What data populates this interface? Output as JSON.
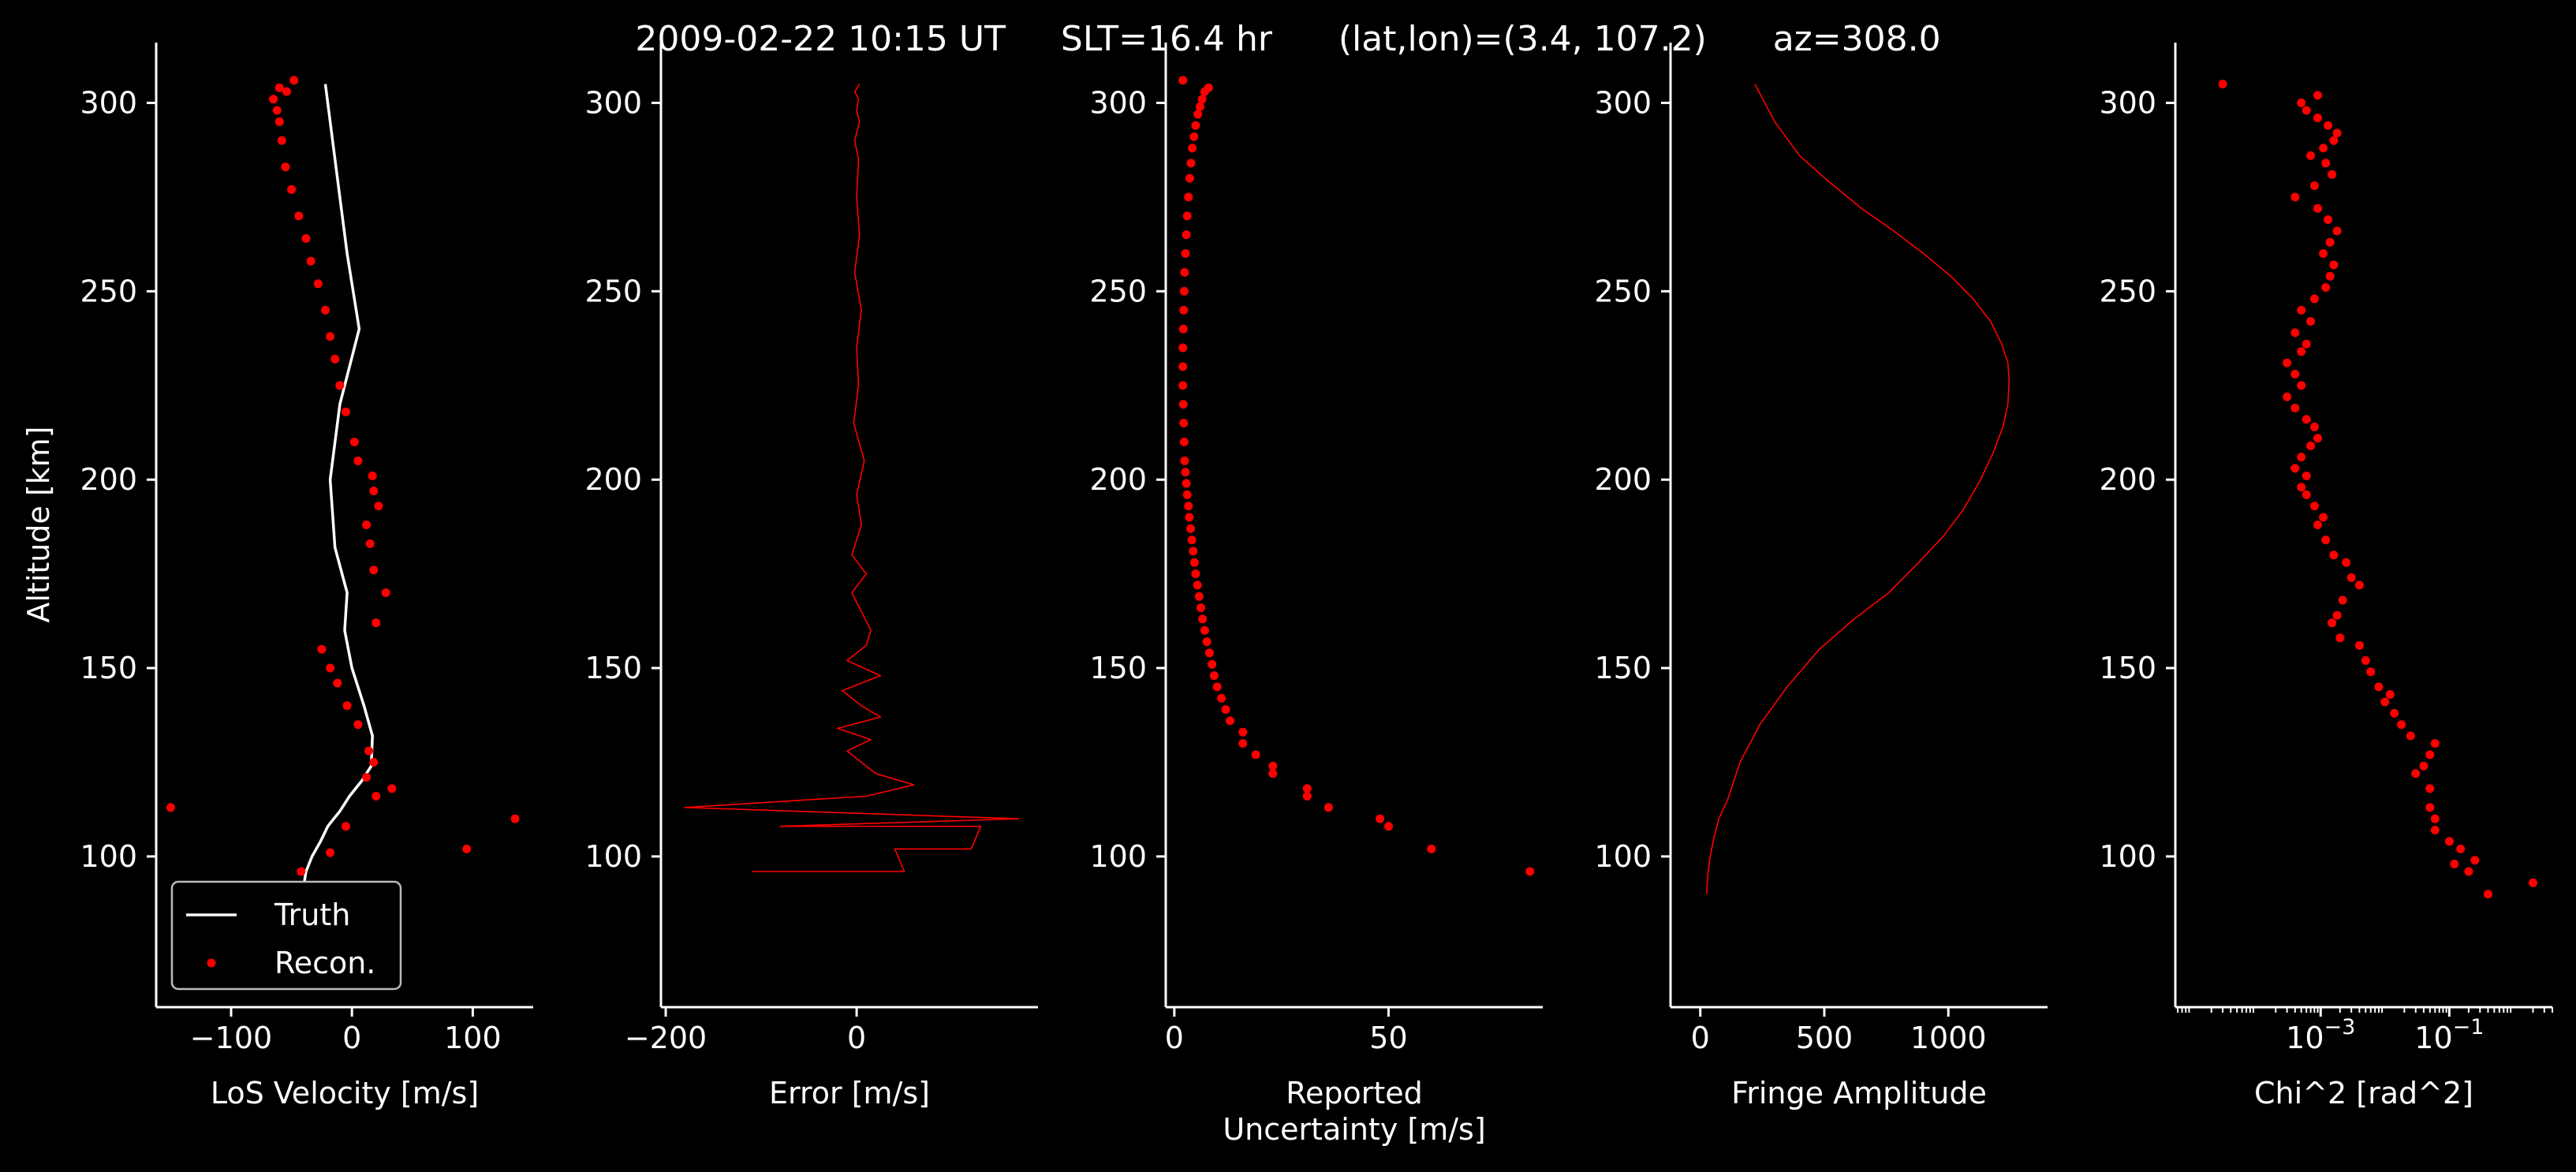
{
  "title": "2009-02-22 10:15 UT     SLT=16.4 hr      (lat,lon)=(3.4, 107.2)      az=308.0",
  "colors": {
    "background": "#000000",
    "axes": "#ffffff",
    "data": "#ff0000",
    "truth": "#ffffff"
  },
  "ylabel": "Altitude [km]",
  "chart_data": [
    {
      "type": "line",
      "xlabel": "LoS Velocity [m/s]",
      "ylabel": "Altitude [km]",
      "xlim": [
        -162,
        150
      ],
      "ylim": [
        60,
        316
      ],
      "xticks": [
        -100,
        0,
        100
      ],
      "xtick_labels": [
        "−100",
        "0",
        "100"
      ],
      "yticks": [
        100,
        150,
        200,
        250,
        300
      ],
      "ytick_labels": [
        "100",
        "150",
        "200",
        "250",
        "300"
      ],
      "legend": {
        "position": "lower-left",
        "entries": [
          "Truth",
          "Recon."
        ]
      },
      "series": [
        {
          "name": "Truth",
          "kind": "line",
          "x": [
            -40,
            -38,
            -33,
            -26,
            -20,
            -15,
            -10,
            -2,
            8,
            16,
            17,
            10,
            0,
            -6,
            -4,
            -14,
            -18,
            -10,
            6,
            -4,
            -12,
            -18,
            -22
          ],
          "y": [
            92,
            96,
            100,
            104,
            108,
            110,
            112,
            116,
            120,
            124,
            132,
            140,
            150,
            160,
            170,
            182,
            200,
            220,
            240,
            260,
            280,
            295,
            305
          ]
        },
        {
          "name": "Recon.",
          "kind": "scatter",
          "x": [
            -150,
            -42,
            -18,
            95,
            135,
            -5,
            33,
            20,
            12,
            18,
            14,
            5,
            -4,
            -12,
            -18,
            -25,
            20,
            28,
            18,
            15,
            12,
            22,
            18,
            17,
            5,
            2,
            -5,
            -10,
            -14,
            -18,
            -22,
            -28,
            -34,
            -38,
            -44,
            -50,
            -55,
            -58,
            -60,
            -62,
            -65,
            -54,
            -60,
            -48
          ],
          "y": [
            113,
            96,
            101,
            102,
            110,
            108,
            118,
            116,
            121,
            125,
            128,
            135,
            140,
            146,
            150,
            155,
            162,
            170,
            176,
            183,
            188,
            193,
            197,
            201,
            205,
            210,
            218,
            225,
            232,
            238,
            245,
            252,
            258,
            264,
            270,
            277,
            283,
            290,
            295,
            298,
            301,
            303,
            304,
            306
          ]
        }
      ]
    },
    {
      "type": "line",
      "xlabel": "Error [m/s]",
      "xlim": [
        -205,
        190
      ],
      "ylim": [
        60,
        316
      ],
      "xticks": [
        -200,
        0
      ],
      "xtick_labels": [
        "−200",
        "0"
      ],
      "yticks": [
        100,
        150,
        200,
        250,
        300
      ],
      "ytick_labels": [
        "100",
        "150",
        "200",
        "250",
        "300"
      ],
      "series": [
        {
          "kind": "line",
          "x": [
            -110,
            50,
            40,
            120,
            130,
            -80,
            170,
            -180,
            10,
            60,
            20,
            5,
            -10,
            15,
            -20,
            25,
            5,
            -15,
            25,
            -10,
            10,
            15,
            5,
            -5,
            10,
            -5,
            5,
            0,
            8,
            -3,
            2,
            0,
            5,
            -2,
            3,
            0,
            2,
            -2,
            3,
            0,
            2,
            -2,
            3
          ],
          "y": [
            96,
            96,
            102,
            102,
            108,
            108,
            110,
            113,
            116,
            119,
            122,
            125,
            128,
            131,
            134,
            137,
            140,
            144,
            148,
            152,
            156,
            160,
            165,
            170,
            175,
            180,
            188,
            196,
            205,
            215,
            225,
            235,
            245,
            255,
            265,
            275,
            285,
            290,
            295,
            298,
            301,
            303,
            305
          ]
        }
      ]
    },
    {
      "type": "scatter",
      "xlabel": "Reported\nUncertainty [m/s]",
      "xlim": [
        -2,
        86
      ],
      "ylim": [
        60,
        316
      ],
      "xticks": [
        0,
        50
      ],
      "xtick_labels": [
        "0",
        "50"
      ],
      "yticks": [
        100,
        150,
        200,
        250,
        300
      ],
      "ytick_labels": [
        "100",
        "150",
        "200",
        "250",
        "300"
      ],
      "series": [
        {
          "kind": "scatter",
          "x": [
            83,
            60,
            50,
            48,
            36,
            31,
            31,
            23,
            23,
            19,
            16,
            16,
            13,
            12,
            11,
            10,
            9.3,
            8.8,
            8.2,
            7.6,
            7.1,
            6.6,
            6.2,
            5.8,
            5.4,
            5.0,
            4.7,
            4.4,
            4.1,
            3.8,
            3.5,
            3.3,
            3.0,
            2.8,
            2.6,
            2.4,
            2.3,
            2.2,
            2.1,
            2.0,
            2.0,
            2.0,
            2.1,
            2.2,
            2.3,
            2.4,
            2.6,
            2.8,
            3.0,
            3.3,
            3.6,
            3.9,
            4.2,
            4.6,
            5.0,
            5.5,
            6.0,
            6.5,
            7.1,
            8.0,
            2.0
          ],
          "y": [
            96,
            102,
            108,
            110,
            113,
            116,
            118,
            122,
            124,
            127,
            130,
            133,
            136,
            139,
            142,
            145,
            148,
            151,
            154,
            157,
            160,
            163,
            166,
            169,
            172,
            175,
            178,
            181,
            184,
            187,
            190,
            193,
            196,
            199,
            202,
            205,
            210,
            215,
            220,
            225,
            230,
            235,
            240,
            245,
            250,
            255,
            260,
            265,
            270,
            275,
            280,
            284,
            288,
            291,
            294,
            297,
            299,
            301,
            303,
            304,
            306
          ]
        }
      ]
    },
    {
      "type": "line",
      "xlabel": "Fringe Amplitude",
      "xlim": [
        -120,
        1400
      ],
      "ylim": [
        60,
        316
      ],
      "xticks": [
        0,
        500,
        1000
      ],
      "xtick_labels": [
        "0",
        "500",
        "1000"
      ],
      "yticks": [
        100,
        150,
        200,
        250,
        300
      ],
      "ytick_labels": [
        "100",
        "150",
        "200",
        "250",
        "300"
      ],
      "series": [
        {
          "kind": "line",
          "x": [
            25,
            30,
            40,
            55,
            75,
            110,
            160,
            240,
            350,
            480,
            620,
            760,
            880,
            980,
            1060,
            1130,
            1180,
            1220,
            1240,
            1245,
            1240,
            1215,
            1170,
            1100,
            1010,
            900,
            780,
            650,
            520,
            400,
            300,
            220
          ],
          "y": [
            90,
            95,
            100,
            105,
            110,
            115,
            125,
            135,
            145,
            155,
            163,
            170,
            178,
            185,
            192,
            200,
            207,
            214,
            220,
            226,
            231,
            236,
            242,
            248,
            254,
            260,
            266,
            272,
            279,
            286,
            295,
            305
          ]
        }
      ]
    },
    {
      "type": "scatter",
      "xlabel": "Chi^2 [rad^2]",
      "xscale": "log",
      "xlim": [
        5.5e-06,
        4
      ],
      "ylim": [
        60,
        316
      ],
      "xticks": [
        0.001,
        0.1
      ],
      "xtick_labels": [
        "10",
        "10"
      ],
      "xtick_exponents": [
        "−3",
        "−1"
      ],
      "yticks": [
        100,
        150,
        200,
        250,
        300
      ],
      "ytick_labels": [
        "100",
        "150",
        "200",
        "250",
        "300"
      ],
      "series": [
        {
          "kind": "scatter",
          "x": [
            2.0,
            0.4,
            0.2,
            0.12,
            0.25,
            0.15,
            0.1,
            0.06,
            0.06,
            0.05,
            0.05,
            0.03,
            0.04,
            0.05,
            0.06,
            0.025,
            0.018,
            0.014,
            0.01,
            0.012,
            0.008,
            0.006,
            0.005,
            0.004,
            0.002,
            0.0015,
            0.0018,
            0.0022,
            0.004,
            0.003,
            0.0025,
            0.0016,
            0.0012,
            0.0009,
            0.0011,
            0.0008,
            0.0006,
            0.0005,
            0.0006,
            0.0004,
            0.0005,
            0.0007,
            0.0009,
            0.0008,
            0.0006,
            0.0004,
            0.0003,
            0.0005,
            0.0004,
            0.0003,
            0.0005,
            0.0006,
            0.0004,
            0.0007,
            0.0005,
            0.0008,
            0.0012,
            0.0014,
            0.0016,
            0.0011,
            0.0014,
            0.0018,
            0.0013,
            0.0009,
            0.0004,
            0.0008,
            0.0015,
            0.0012,
            0.0007,
            0.0011,
            0.0016,
            0.0018,
            0.0013,
            0.0009,
            0.0006,
            0.0005,
            0.0009,
            3e-05
          ],
          "y": [
            93,
            90,
            96,
            98,
            99,
            102,
            104,
            107,
            110,
            113,
            118,
            122,
            124,
            127,
            130,
            132,
            135,
            138,
            141,
            143,
            145,
            149,
            152,
            156,
            158,
            162,
            164,
            168,
            172,
            174,
            178,
            180,
            184,
            188,
            190,
            193,
            196,
            198,
            201,
            203,
            206,
            209,
            211,
            214,
            216,
            219,
            222,
            225,
            228,
            231,
            234,
            236,
            239,
            242,
            245,
            248,
            251,
            254,
            257,
            260,
            263,
            266,
            269,
            272,
            275,
            278,
            281,
            284,
            286,
            288,
            290,
            292,
            294,
            296,
            298,
            300,
            302,
            305
          ]
        }
      ]
    }
  ]
}
